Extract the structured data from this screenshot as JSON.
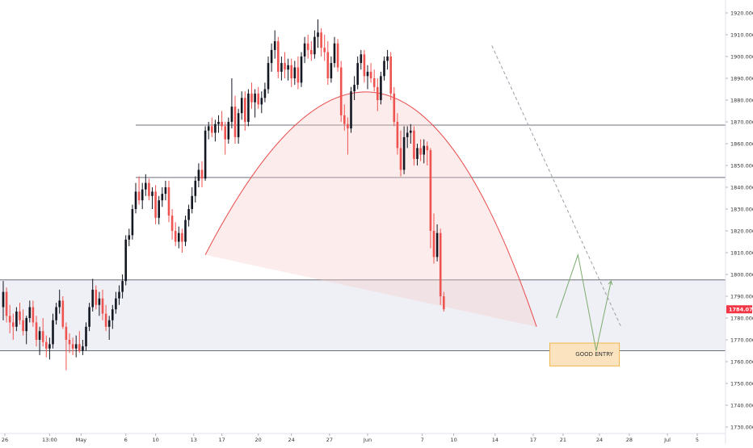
{
  "chart_data": {
    "type": "candlestick",
    "instrument_price_label": "1784.070",
    "price_label_color": "#f23645",
    "up_color": "#131722",
    "down_color": "#ef5350",
    "ylim": [
      1728,
      1923
    ],
    "y_ticks": [
      {
        "v": 1920,
        "label": "1920.000"
      },
      {
        "v": 1910,
        "label": "1910.000"
      },
      {
        "v": 1900,
        "label": "1900.000"
      },
      {
        "v": 1890,
        "label": "1890.000"
      },
      {
        "v": 1880,
        "label": "1880.000"
      },
      {
        "v": 1870,
        "label": "1870.000"
      },
      {
        "v": 1860,
        "label": "1860.000"
      },
      {
        "v": 1850,
        "label": "1850.000"
      },
      {
        "v": 1840,
        "label": "1840.000"
      },
      {
        "v": 1830,
        "label": "1830.000"
      },
      {
        "v": 1820,
        "label": "1820.000"
      },
      {
        "v": 1810,
        "label": "1810.000"
      },
      {
        "v": 1800,
        "label": "1800.000"
      },
      {
        "v": 1790,
        "label": "1790.000"
      },
      {
        "v": 1780,
        "label": "1780.000"
      },
      {
        "v": 1770,
        "label": "1770.000"
      },
      {
        "v": 1760,
        "label": "1760.000"
      },
      {
        "v": 1750,
        "label": "1750.000"
      },
      {
        "v": 1740,
        "label": "1740.000"
      },
      {
        "v": 1730,
        "label": "1730.000"
      }
    ],
    "x_ticks": [
      {
        "x": 0.5,
        "label": "26"
      },
      {
        "x": 14,
        "label": "13:00"
      },
      {
        "x": 23.5,
        "label": "May"
      },
      {
        "x": 37,
        "label": "6"
      },
      {
        "x": 46,
        "label": "10"
      },
      {
        "x": 57.5,
        "label": "13"
      },
      {
        "x": 66,
        "label": "17"
      },
      {
        "x": 77,
        "label": "20"
      },
      {
        "x": 87,
        "label": "24"
      },
      {
        "x": 98.5,
        "label": "27"
      },
      {
        "x": 110,
        "label": "Jun"
      },
      {
        "x": 126.5,
        "label": "7"
      },
      {
        "x": 136,
        "label": "10"
      },
      {
        "x": 148.5,
        "label": "14"
      },
      {
        "x": 160,
        "label": "17"
      },
      {
        "x": 169,
        "label": "21"
      },
      {
        "x": 180,
        "label": "24"
      },
      {
        "x": 189,
        "label": "28"
      },
      {
        "x": 200.5,
        "label": "Jul"
      },
      {
        "x": 209.5,
        "label": "5"
      }
    ],
    "candles": [
      {
        "o": 1785,
        "h": 1797,
        "l": 1779,
        "c": 1792
      },
      {
        "o": 1792,
        "h": 1794,
        "l": 1778,
        "c": 1781
      },
      {
        "o": 1781,
        "h": 1786,
        "l": 1773,
        "c": 1778
      },
      {
        "o": 1778,
        "h": 1782,
        "l": 1770,
        "c": 1776
      },
      {
        "o": 1776,
        "h": 1785,
        "l": 1774,
        "c": 1783
      },
      {
        "o": 1783,
        "h": 1787,
        "l": 1777,
        "c": 1779
      },
      {
        "o": 1779,
        "h": 1784,
        "l": 1772,
        "c": 1774
      },
      {
        "o": 1774,
        "h": 1781,
        "l": 1768,
        "c": 1780
      },
      {
        "o": 1780,
        "h": 1788,
        "l": 1778,
        "c": 1785
      },
      {
        "o": 1785,
        "h": 1788,
        "l": 1776,
        "c": 1778
      },
      {
        "o": 1778,
        "h": 1781,
        "l": 1767,
        "c": 1770
      },
      {
        "o": 1770,
        "h": 1776,
        "l": 1763,
        "c": 1774
      },
      {
        "o": 1774,
        "h": 1780,
        "l": 1767,
        "c": 1769
      },
      {
        "o": 1769,
        "h": 1772,
        "l": 1762,
        "c": 1766
      },
      {
        "o": 1766,
        "h": 1771,
        "l": 1761,
        "c": 1768
      },
      {
        "o": 1768,
        "h": 1782,
        "l": 1766,
        "c": 1779
      },
      {
        "o": 1779,
        "h": 1787,
        "l": 1777,
        "c": 1785
      },
      {
        "o": 1785,
        "h": 1793,
        "l": 1782,
        "c": 1788
      },
      {
        "o": 1788,
        "h": 1790,
        "l": 1775,
        "c": 1776
      },
      {
        "o": 1776,
        "h": 1778,
        "l": 1756,
        "c": 1770
      },
      {
        "o": 1770,
        "h": 1773,
        "l": 1764,
        "c": 1768
      },
      {
        "o": 1768,
        "h": 1771,
        "l": 1763,
        "c": 1766
      },
      {
        "o": 1766,
        "h": 1772,
        "l": 1762,
        "c": 1768
      },
      {
        "o": 1768,
        "h": 1774,
        "l": 1764,
        "c": 1765
      },
      {
        "o": 1765,
        "h": 1770,
        "l": 1763,
        "c": 1767
      },
      {
        "o": 1767,
        "h": 1778,
        "l": 1765,
        "c": 1776
      },
      {
        "o": 1776,
        "h": 1787,
        "l": 1774,
        "c": 1785
      },
      {
        "o": 1785,
        "h": 1798,
        "l": 1783,
        "c": 1793
      },
      {
        "o": 1793,
        "h": 1795,
        "l": 1784,
        "c": 1786
      },
      {
        "o": 1786,
        "h": 1792,
        "l": 1781,
        "c": 1789
      },
      {
        "o": 1789,
        "h": 1793,
        "l": 1779,
        "c": 1782
      },
      {
        "o": 1782,
        "h": 1786,
        "l": 1774,
        "c": 1776
      },
      {
        "o": 1776,
        "h": 1781,
        "l": 1770,
        "c": 1779
      },
      {
        "o": 1779,
        "h": 1786,
        "l": 1775,
        "c": 1784
      },
      {
        "o": 1784,
        "h": 1792,
        "l": 1782,
        "c": 1789
      },
      {
        "o": 1789,
        "h": 1795,
        "l": 1786,
        "c": 1792
      },
      {
        "o": 1792,
        "h": 1800,
        "l": 1789,
        "c": 1797
      },
      {
        "o": 1797,
        "h": 1818,
        "l": 1795,
        "c": 1816
      },
      {
        "o": 1816,
        "h": 1821,
        "l": 1813,
        "c": 1818
      },
      {
        "o": 1818,
        "h": 1832,
        "l": 1816,
        "c": 1830
      },
      {
        "o": 1830,
        "h": 1842,
        "l": 1828,
        "c": 1838
      },
      {
        "o": 1838,
        "h": 1845,
        "l": 1832,
        "c": 1834
      },
      {
        "o": 1834,
        "h": 1842,
        "l": 1830,
        "c": 1839
      },
      {
        "o": 1839,
        "h": 1846,
        "l": 1836,
        "c": 1842
      },
      {
        "o": 1842,
        "h": 1844,
        "l": 1834,
        "c": 1836
      },
      {
        "o": 1836,
        "h": 1840,
        "l": 1830,
        "c": 1838
      },
      {
        "o": 1838,
        "h": 1841,
        "l": 1823,
        "c": 1826
      },
      {
        "o": 1826,
        "h": 1836,
        "l": 1823,
        "c": 1834
      },
      {
        "o": 1834,
        "h": 1840,
        "l": 1831,
        "c": 1837
      },
      {
        "o": 1837,
        "h": 1843,
        "l": 1834,
        "c": 1840
      },
      {
        "o": 1840,
        "h": 1843,
        "l": 1824,
        "c": 1827
      },
      {
        "o": 1827,
        "h": 1830,
        "l": 1816,
        "c": 1820
      },
      {
        "o": 1820,
        "h": 1824,
        "l": 1813,
        "c": 1815
      },
      {
        "o": 1815,
        "h": 1822,
        "l": 1812,
        "c": 1819
      },
      {
        "o": 1819,
        "h": 1821,
        "l": 1810,
        "c": 1815
      },
      {
        "o": 1815,
        "h": 1827,
        "l": 1813,
        "c": 1825
      },
      {
        "o": 1825,
        "h": 1832,
        "l": 1822,
        "c": 1830
      },
      {
        "o": 1830,
        "h": 1840,
        "l": 1828,
        "c": 1836
      },
      {
        "o": 1836,
        "h": 1845,
        "l": 1833,
        "c": 1843
      },
      {
        "o": 1843,
        "h": 1851,
        "l": 1840,
        "c": 1848
      },
      {
        "o": 1848,
        "h": 1852,
        "l": 1840,
        "c": 1844
      },
      {
        "o": 1844,
        "h": 1868,
        "l": 1843,
        "c": 1866
      },
      {
        "o": 1866,
        "h": 1870,
        "l": 1862,
        "c": 1868
      },
      {
        "o": 1868,
        "h": 1872,
        "l": 1863,
        "c": 1865
      },
      {
        "o": 1865,
        "h": 1871,
        "l": 1861,
        "c": 1869
      },
      {
        "o": 1869,
        "h": 1873,
        "l": 1865,
        "c": 1870
      },
      {
        "o": 1870,
        "h": 1875,
        "l": 1866,
        "c": 1868
      },
      {
        "o": 1868,
        "h": 1870,
        "l": 1855,
        "c": 1862
      },
      {
        "o": 1862,
        "h": 1872,
        "l": 1860,
        "c": 1870
      },
      {
        "o": 1870,
        "h": 1890,
        "l": 1867,
        "c": 1877
      },
      {
        "o": 1877,
        "h": 1882,
        "l": 1860,
        "c": 1863
      },
      {
        "o": 1863,
        "h": 1876,
        "l": 1860,
        "c": 1874
      },
      {
        "o": 1874,
        "h": 1884,
        "l": 1871,
        "c": 1881
      },
      {
        "o": 1881,
        "h": 1884,
        "l": 1866,
        "c": 1870
      },
      {
        "o": 1870,
        "h": 1885,
        "l": 1868,
        "c": 1883
      },
      {
        "o": 1883,
        "h": 1888,
        "l": 1876,
        "c": 1879
      },
      {
        "o": 1879,
        "h": 1885,
        "l": 1872,
        "c": 1883
      },
      {
        "o": 1883,
        "h": 1886,
        "l": 1876,
        "c": 1878
      },
      {
        "o": 1878,
        "h": 1884,
        "l": 1874,
        "c": 1881
      },
      {
        "o": 1881,
        "h": 1888,
        "l": 1879,
        "c": 1885
      },
      {
        "o": 1885,
        "h": 1900,
        "l": 1883,
        "c": 1897
      },
      {
        "o": 1897,
        "h": 1906,
        "l": 1893,
        "c": 1903
      },
      {
        "o": 1903,
        "h": 1912,
        "l": 1899,
        "c": 1907
      },
      {
        "o": 1907,
        "h": 1909,
        "l": 1890,
        "c": 1893
      },
      {
        "o": 1893,
        "h": 1900,
        "l": 1889,
        "c": 1897
      },
      {
        "o": 1897,
        "h": 1902,
        "l": 1890,
        "c": 1894
      },
      {
        "o": 1894,
        "h": 1899,
        "l": 1889,
        "c": 1896
      },
      {
        "o": 1896,
        "h": 1899,
        "l": 1886,
        "c": 1890
      },
      {
        "o": 1890,
        "h": 1898,
        "l": 1887,
        "c": 1895
      },
      {
        "o": 1895,
        "h": 1900,
        "l": 1885,
        "c": 1888
      },
      {
        "o": 1888,
        "h": 1902,
        "l": 1886,
        "c": 1900
      },
      {
        "o": 1900,
        "h": 1909,
        "l": 1897,
        "c": 1906
      },
      {
        "o": 1906,
        "h": 1910,
        "l": 1899,
        "c": 1903
      },
      {
        "o": 1903,
        "h": 1907,
        "l": 1898,
        "c": 1901
      },
      {
        "o": 1901,
        "h": 1912,
        "l": 1899,
        "c": 1909
      },
      {
        "o": 1909,
        "h": 1917,
        "l": 1904,
        "c": 1911
      },
      {
        "o": 1911,
        "h": 1913,
        "l": 1900,
        "c": 1904
      },
      {
        "o": 1904,
        "h": 1910,
        "l": 1898,
        "c": 1902
      },
      {
        "o": 1902,
        "h": 1907,
        "l": 1887,
        "c": 1890
      },
      {
        "o": 1890,
        "h": 1900,
        "l": 1888,
        "c": 1897
      },
      {
        "o": 1897,
        "h": 1909,
        "l": 1895,
        "c": 1906
      },
      {
        "o": 1906,
        "h": 1908,
        "l": 1893,
        "c": 1895
      },
      {
        "o": 1895,
        "h": 1898,
        "l": 1870,
        "c": 1873
      },
      {
        "o": 1873,
        "h": 1878,
        "l": 1866,
        "c": 1869
      },
      {
        "o": 1869,
        "h": 1872,
        "l": 1855,
        "c": 1867
      },
      {
        "o": 1867,
        "h": 1886,
        "l": 1865,
        "c": 1884
      },
      {
        "o": 1884,
        "h": 1891,
        "l": 1880,
        "c": 1887
      },
      {
        "o": 1887,
        "h": 1900,
        "l": 1885,
        "c": 1897
      },
      {
        "o": 1897,
        "h": 1903,
        "l": 1894,
        "c": 1901
      },
      {
        "o": 1901,
        "h": 1903,
        "l": 1888,
        "c": 1891
      },
      {
        "o": 1891,
        "h": 1896,
        "l": 1885,
        "c": 1893
      },
      {
        "o": 1893,
        "h": 1897,
        "l": 1888,
        "c": 1890
      },
      {
        "o": 1890,
        "h": 1894,
        "l": 1884,
        "c": 1886
      },
      {
        "o": 1886,
        "h": 1890,
        "l": 1875,
        "c": 1880
      },
      {
        "o": 1880,
        "h": 1893,
        "l": 1878,
        "c": 1891
      },
      {
        "o": 1891,
        "h": 1900,
        "l": 1889,
        "c": 1898
      },
      {
        "o": 1898,
        "h": 1903,
        "l": 1894,
        "c": 1900
      },
      {
        "o": 1900,
        "h": 1902,
        "l": 1880,
        "c": 1883
      },
      {
        "o": 1883,
        "h": 1886,
        "l": 1868,
        "c": 1870
      },
      {
        "o": 1870,
        "h": 1874,
        "l": 1855,
        "c": 1858
      },
      {
        "o": 1858,
        "h": 1866,
        "l": 1845,
        "c": 1848
      },
      {
        "o": 1848,
        "h": 1868,
        "l": 1846,
        "c": 1863
      },
      {
        "o": 1863,
        "h": 1868,
        "l": 1858,
        "c": 1865
      },
      {
        "o": 1865,
        "h": 1869,
        "l": 1860,
        "c": 1866
      },
      {
        "o": 1866,
        "h": 1868,
        "l": 1850,
        "c": 1853
      },
      {
        "o": 1853,
        "h": 1860,
        "l": 1850,
        "c": 1858
      },
      {
        "o": 1858,
        "h": 1862,
        "l": 1852,
        "c": 1855
      },
      {
        "o": 1855,
        "h": 1862,
        "l": 1851,
        "c": 1859
      },
      {
        "o": 1859,
        "h": 1861,
        "l": 1850,
        "c": 1857
      },
      {
        "o": 1857,
        "h": 1858,
        "l": 1812,
        "c": 1820
      },
      {
        "o": 1820,
        "h": 1828,
        "l": 1805,
        "c": 1808
      },
      {
        "o": 1808,
        "h": 1823,
        "l": 1806,
        "c": 1819
      },
      {
        "o": 1819,
        "h": 1821,
        "l": 1786,
        "c": 1790
      },
      {
        "o": 1790,
        "h": 1792,
        "l": 1783,
        "c": 1784
      }
    ],
    "horizontal_levels": [
      1868.5,
      1844.5,
      1797.5,
      1765
    ],
    "zone": {
      "top": 1797.5,
      "bottom": 1765
    },
    "good_entry_zone": {
      "x0": 165,
      "x1": 186,
      "top": 1768.5,
      "bottom": 1758,
      "label": "GOOD ENTRY"
    },
    "projected_path": [
      [
        167,
        1780
      ],
      [
        173.5,
        1809
      ],
      [
        179,
        1765
      ],
      [
        183.5,
        1797
      ]
    ],
    "resistance_trendline": [
      [
        147.5,
        1905
      ],
      [
        186.5,
        1776
      ]
    ],
    "arc": {
      "start": [
        61,
        1809
      ],
      "peak": [
        114,
        1883
      ],
      "end": [
        161,
        1776
      ]
    }
  }
}
